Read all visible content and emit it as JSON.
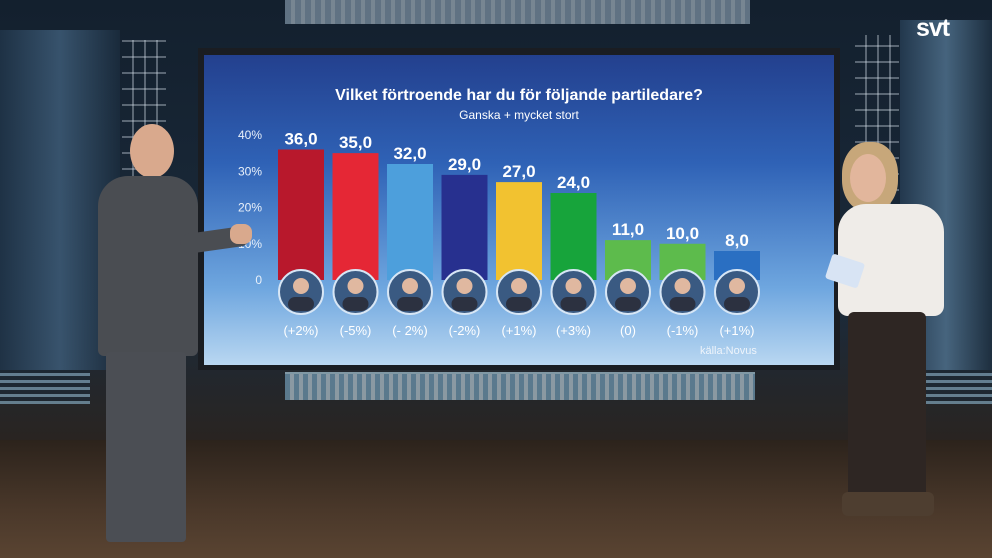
{
  "broadcaster": "svt",
  "chart_data": {
    "type": "bar",
    "title": "Vilket förtroende har du för följande partiledare?",
    "subtitle": "Ganska + mycket stort",
    "source": "källa:Novus",
    "ylim": [
      0,
      40
    ],
    "yticks": [
      "0",
      "10%",
      "20%",
      "30%",
      "40%"
    ],
    "values": [
      36.0,
      35.0,
      32.0,
      29.0,
      27.0,
      24.0,
      11.0,
      10.0,
      8.0
    ],
    "value_labels": [
      "36,0",
      "35,0",
      "32,0",
      "29,0",
      "27,0",
      "24,0",
      "11,0",
      "10,0",
      "8,0"
    ],
    "changes": [
      "(+2%)",
      "(-5%)",
      "(- 2%)",
      "(-2%)",
      "(+1%)",
      "(+3%)",
      "(0)",
      "(-1%)",
      "(+1%)"
    ],
    "colors": [
      "#b8182c",
      "#e52735",
      "#4d9fdc",
      "#27308f",
      "#f2c230",
      "#17a43b",
      "#5dbb4c",
      "#5dbb4c",
      "#2a6fc2"
    ],
    "grid": false
  }
}
